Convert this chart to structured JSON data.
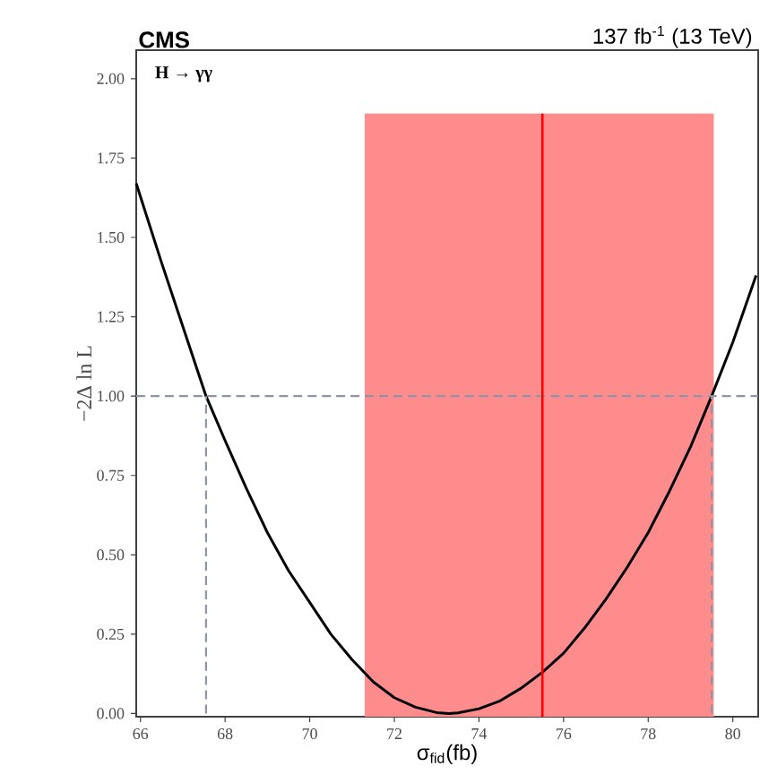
{
  "chart_data": {
    "type": "line",
    "title": "CMS",
    "subtitle": "137 fb$^{-1}$ (13 TeV)",
    "xlabel": "σ$_{fid}$(fb)",
    "ylabel": "−2Δ ln L",
    "annotations": [
      "H → γγ"
    ],
    "xlim": [
      65.9,
      80.6
    ],
    "ylim": [
      -0.01,
      2.09
    ],
    "xticks": [
      66,
      68,
      70,
      72,
      74,
      76,
      78,
      80
    ],
    "yticks": [
      {
        "value": 0,
        "label": "0.00"
      },
      {
        "value": 0.25,
        "label": "0.25"
      },
      {
        "value": 0.5,
        "label": "0.50"
      },
      {
        "value": 0.75,
        "label": "0.75"
      },
      {
        "value": 1,
        "label": "1.00"
      },
      {
        "value": 1.25,
        "label": "1.25"
      },
      {
        "value": 1.5,
        "label": "1.50"
      },
      {
        "value": 1.75,
        "label": "1.75"
      },
      {
        "value": 2,
        "label": "2.00"
      }
    ],
    "grid": false,
    "series": [
      {
        "color": "#000000",
        "line_style": "solid",
        "x": [
          65.9,
          66.5,
          67,
          67.55,
          68,
          68.5,
          69,
          69.5,
          70,
          70.5,
          71,
          71.5,
          72,
          72.5,
          73,
          73.3,
          73.5,
          74,
          74.5,
          75,
          75.5,
          76,
          76.5,
          77,
          77.5,
          78,
          78.5,
          79,
          79.5,
          80,
          80.55
        ],
        "values": [
          1.67,
          1.42,
          1.22,
          1.0,
          0.86,
          0.71,
          0.57,
          0.45,
          0.35,
          0.25,
          0.17,
          0.1,
          0.05,
          0.02,
          0.003,
          0,
          0.002,
          0.015,
          0.04,
          0.08,
          0.13,
          0.19,
          0.27,
          0.36,
          0.46,
          0.57,
          0.7,
          0.84,
          1.0,
          1.17,
          1.38
        ]
      },
      {
        "color": "#8c96a8",
        "line_style": "dashed",
        "x": [
          67.55,
          67.55
        ],
        "values": [
          0,
          1
        ]
      },
      {
        "color": "#8c96a8",
        "line_style": "dashed",
        "x": [
          79.5,
          79.5
        ],
        "values": [
          0,
          1
        ]
      }
    ],
    "ref_lines": [
      {
        "axis": "y",
        "value": 1,
        "color": "#8c96a8",
        "line_style": "dashed"
      },
      {
        "axis": "x",
        "value": 75.5,
        "color": "#ff0000",
        "line_style": "solid"
      }
    ],
    "bands": [
      {
        "axis": "x",
        "from": 71.3,
        "to": 79.55,
        "color": "#ff8c8c"
      }
    ]
  }
}
